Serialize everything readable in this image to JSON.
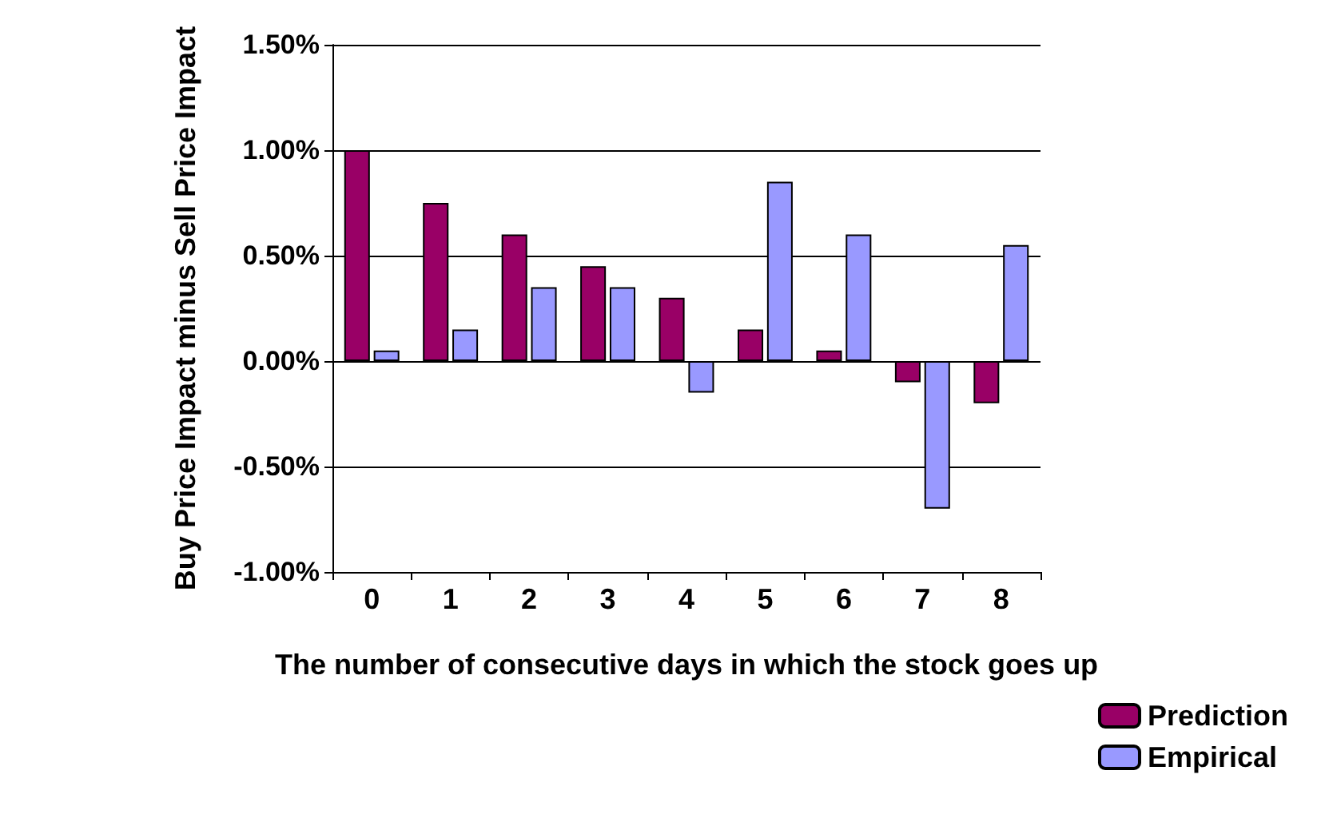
{
  "chart_data": {
    "type": "bar",
    "xlabel": "The number of consecutive days in which the stock goes up",
    "ylabel": "Buy Price Impact minus Sell Price Impact",
    "categories": [
      "0",
      "1",
      "2",
      "3",
      "4",
      "5",
      "6",
      "7",
      "8"
    ],
    "series": [
      {
        "name": "Prediction",
        "color": "#990066",
        "values": [
          1.0,
          0.75,
          0.6,
          0.45,
          0.3,
          0.15,
          0.05,
          -0.1,
          -0.2
        ]
      },
      {
        "name": "Empirical",
        "color": "#9999ff",
        "values": [
          0.05,
          0.15,
          0.35,
          0.35,
          -0.15,
          0.85,
          0.6,
          -0.7,
          0.55
        ]
      }
    ],
    "ylim": [
      -1,
      1.5
    ],
    "yticks": [
      {
        "value": -1,
        "label": "-1.00%"
      },
      {
        "value": -0.5,
        "label": "-0.50%"
      },
      {
        "value": 0,
        "label": "0.00%"
      },
      {
        "value": 0.5,
        "label": "0.50%"
      },
      {
        "value": 1,
        "label": "1.00%"
      },
      {
        "value": 1.5,
        "label": "1.50%"
      }
    ],
    "grid": "y",
    "legend": "bottom right"
  }
}
